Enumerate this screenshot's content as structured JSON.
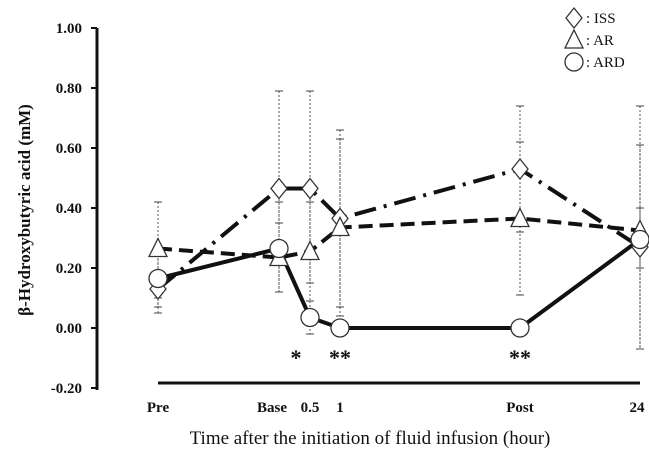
{
  "chart_data": {
    "type": "line",
    "title": "",
    "xlabel": "Time after the initiation of fluid infusion (hour)",
    "ylabel": "β-Hydroxybutyric acid (mM)",
    "ylim": [
      -0.2,
      1.0
    ],
    "yticks": [
      "1.00",
      "0.80",
      "0.60",
      "0.40",
      "0.20",
      "0.00",
      "-0.20"
    ],
    "ytick_values": [
      1.0,
      0.8,
      0.6,
      0.4,
      0.2,
      0.0,
      -0.2
    ],
    "categories": [
      "Pre",
      "Base",
      "0.5",
      "1",
      "Post",
      "24"
    ],
    "grid": false,
    "legend_position": "top-right",
    "series": [
      {
        "name": "ISS",
        "legend_label": ": ISS",
        "marker": "diamond",
        "line_style": "dash-dot",
        "points": [
          {
            "cat": "Pre",
            "y": 0.13,
            "err_low": 0.07,
            "err_high": 0.42
          },
          {
            "cat": "Base",
            "y": 0.465,
            "err_low": 0.12,
            "err_high": 0.79
          },
          {
            "cat": "0.5",
            "y": 0.465,
            "err_low": 0.15,
            "err_high": 0.79
          },
          {
            "cat": "1",
            "y": 0.365,
            "err_low": 0.07,
            "err_high": 0.66
          },
          {
            "cat": "Post",
            "y": 0.53,
            "err_low": 0.32,
            "err_high": 0.74
          },
          {
            "cat": "24",
            "y": 0.27,
            "err_low": -0.07,
            "err_high": 0.61
          }
        ]
      },
      {
        "name": "AR",
        "legend_label": ": AR",
        "marker": "triangle",
        "line_style": "dashed",
        "points": [
          {
            "cat": "Pre",
            "y": 0.265,
            "err_low": 0.1,
            "err_high": 0.42
          },
          {
            "cat": "Base",
            "y": 0.235,
            "err_low": 0.12,
            "err_high": 0.35
          },
          {
            "cat": "0.5",
            "y": 0.255,
            "err_low": 0.09,
            "err_high": 0.42
          },
          {
            "cat": "1",
            "y": 0.335,
            "err_low": 0.04,
            "err_high": 0.63
          },
          {
            "cat": "Post",
            "y": 0.365,
            "err_low": 0.11,
            "err_high": 0.62
          },
          {
            "cat": "24",
            "y": 0.325,
            "err_low": -0.07,
            "err_high": 0.74
          }
        ]
      },
      {
        "name": "ARD",
        "legend_label": ": ARD",
        "marker": "circle",
        "line_style": "solid",
        "points": [
          {
            "cat": "Pre",
            "y": 0.165,
            "err_low": 0.05,
            "err_high": 0.27
          },
          {
            "cat": "Base",
            "y": 0.265,
            "err_low": 0.12,
            "err_high": 0.42
          },
          {
            "cat": "0.5",
            "y": 0.035,
            "err_low": -0.02,
            "err_high": 0.09
          },
          {
            "cat": "1",
            "y": 0.0,
            "err_low": 0.0,
            "err_high": 0.0
          },
          {
            "cat": "Post",
            "y": 0.0,
            "err_low": 0.0,
            "err_high": 0.0
          },
          {
            "cat": "24",
            "y": 0.295,
            "err_low": 0.2,
            "err_high": 0.4
          }
        ]
      }
    ],
    "annotations": [
      {
        "cat": "0.5",
        "text": "*"
      },
      {
        "cat": "1",
        "text": "**"
      },
      {
        "cat": "Post",
        "text": "**"
      }
    ]
  }
}
